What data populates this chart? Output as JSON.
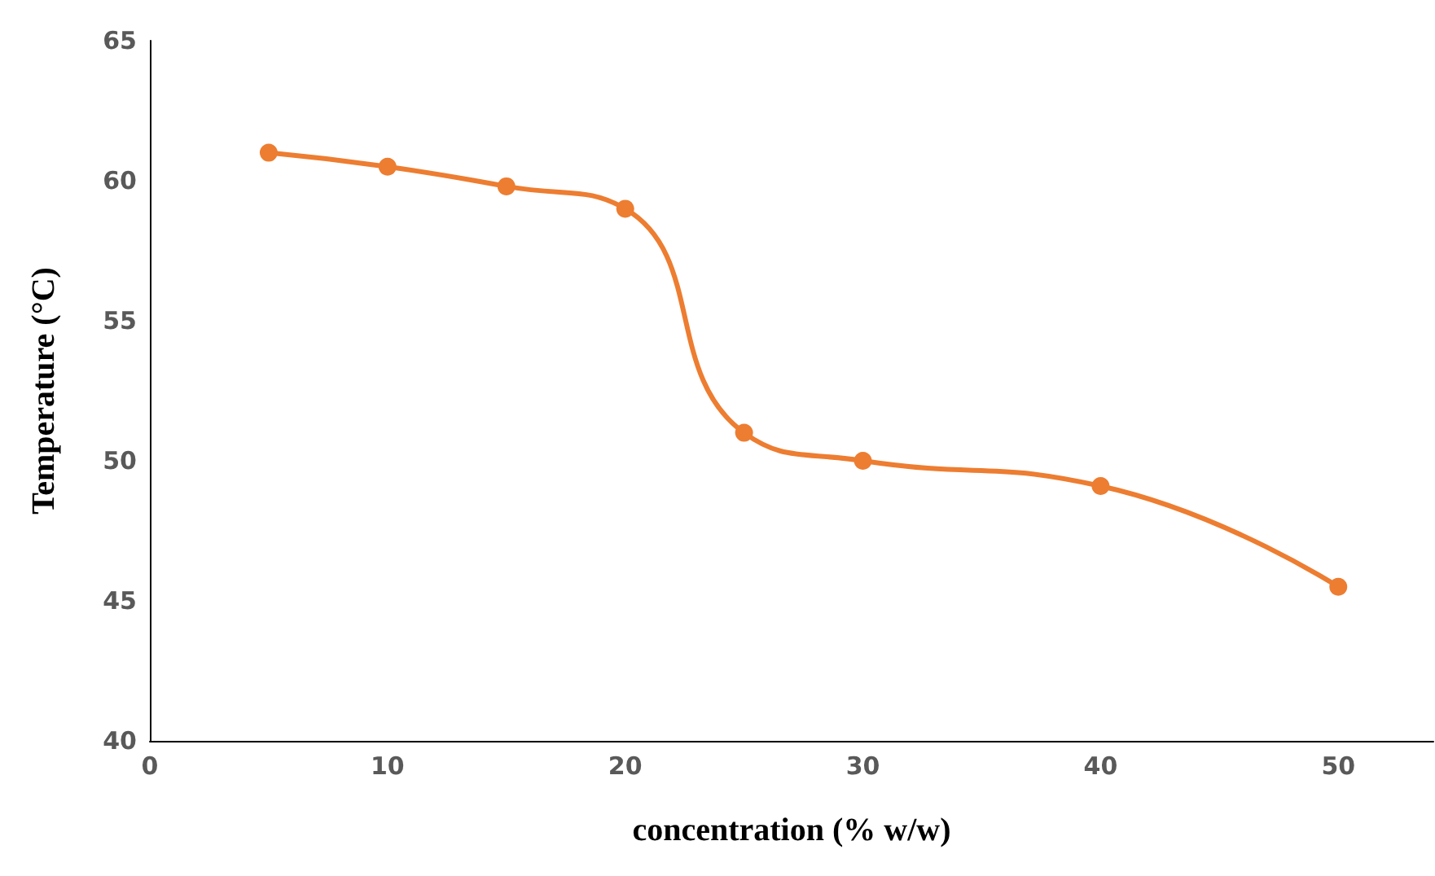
{
  "chart_data": {
    "type": "line",
    "xlabel": "concentration (% w/w)",
    "ylabel": "Temperature (°C)",
    "x": [
      5,
      10,
      15,
      20,
      25,
      30,
      40,
      50
    ],
    "series": [
      {
        "color": "#ed7d31",
        "values": [
          61.0,
          60.5,
          59.8,
          59.0,
          51.0,
          50.0,
          49.1,
          45.5
        ]
      }
    ],
    "xlim": [
      0,
      54
    ],
    "xticks": [
      0,
      10,
      20,
      30,
      40,
      50
    ],
    "ylim": [
      40,
      65
    ],
    "yticks": [
      40,
      45,
      50,
      55,
      60,
      65
    ],
    "grid": false,
    "marker": "circle",
    "line_style": "solid"
  }
}
